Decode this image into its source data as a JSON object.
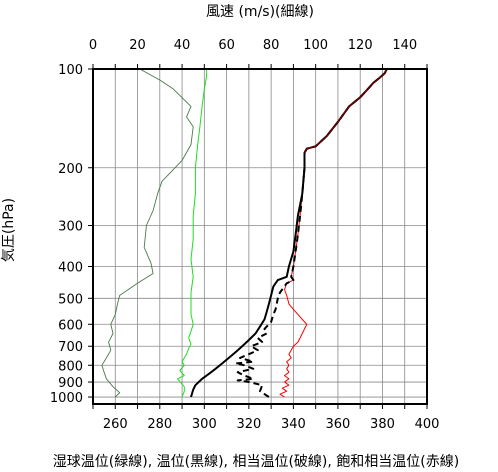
{
  "chart_data": {
    "type": "line",
    "title": "",
    "top_axis_label": "風速 (m/s)(細線)",
    "bottom_axis_label": "湿球温位(緑線), 温位(黒線), 相当温位(破線), 飽和相当温位(赤線)",
    "left_axis_label": "気圧(hPa)",
    "xlim_bottom": [
      250,
      400
    ],
    "xlim_top": [
      0,
      150
    ],
    "y_scale": "log",
    "ylim": [
      1050,
      100
    ],
    "bottom_ticks": [
      "260",
      "280",
      "300",
      "320",
      "340",
      "360",
      "380",
      "400"
    ],
    "top_ticks": [
      "0",
      "20",
      "40",
      "60",
      "80",
      "100",
      "120",
      "140"
    ],
    "y_ticks": [
      "100",
      "200",
      "300",
      "400",
      "500",
      "600",
      "700",
      "800",
      "900",
      "1000"
    ],
    "grid": true,
    "colors": {
      "wind": "#4a7a4a",
      "wet_bulb": "#22dd22",
      "theta": "#000000",
      "theta_e": "#000000",
      "theta_es": "#ff0000",
      "theta_es_upper": "#000000"
    },
    "series": [
      {
        "key": "wind",
        "style": "thin-solid",
        "axis": "top",
        "points": [
          [
            10,
            1000
          ],
          [
            12,
            970
          ],
          [
            9,
            930
          ],
          [
            6,
            880
          ],
          [
            5,
            840
          ],
          [
            4,
            800
          ],
          [
            6,
            760
          ],
          [
            8,
            720
          ],
          [
            7,
            680
          ],
          [
            9,
            640
          ],
          [
            8,
            600
          ],
          [
            10,
            560
          ],
          [
            11,
            520
          ],
          [
            12,
            490
          ],
          [
            20,
            450
          ],
          [
            27,
            420
          ],
          [
            26,
            390
          ],
          [
            23,
            350
          ],
          [
            24,
            300
          ],
          [
            27,
            270
          ],
          [
            29,
            240
          ],
          [
            31,
            220
          ],
          [
            40,
            190
          ],
          [
            44,
            170
          ],
          [
            45,
            150
          ],
          [
            42,
            140
          ],
          [
            44,
            130
          ],
          [
            36,
            115
          ],
          [
            30,
            108
          ],
          [
            21,
            100
          ]
        ]
      },
      {
        "key": "wet_bulb",
        "style": "solid",
        "axis": "bottom",
        "points": [
          [
            290,
            1000
          ],
          [
            291,
            960
          ],
          [
            291,
            930
          ],
          [
            288,
            880
          ],
          [
            291,
            860
          ],
          [
            289,
            830
          ],
          [
            291,
            800
          ],
          [
            290,
            780
          ],
          [
            291,
            760
          ],
          [
            292,
            740
          ],
          [
            293,
            710
          ],
          [
            294,
            690
          ],
          [
            293,
            660
          ],
          [
            294,
            630
          ],
          [
            295,
            600
          ],
          [
            294,
            560
          ],
          [
            294,
            520
          ],
          [
            294,
            480
          ],
          [
            295,
            430
          ],
          [
            294,
            380
          ],
          [
            295,
            330
          ],
          [
            295,
            280
          ],
          [
            296,
            240
          ],
          [
            296,
            200
          ],
          [
            297,
            170
          ],
          [
            298,
            150
          ],
          [
            299,
            130
          ],
          [
            300,
            115
          ],
          [
            301,
            105
          ],
          [
            301,
            100
          ]
        ]
      },
      {
        "key": "theta",
        "style": "solid",
        "axis": "bottom",
        "points": [
          [
            294,
            1000
          ],
          [
            295,
            950
          ],
          [
            296,
            920
          ],
          [
            299,
            880
          ],
          [
            302,
            850
          ],
          [
            305,
            820
          ],
          [
            308,
            790
          ],
          [
            311,
            760
          ],
          [
            314,
            730
          ],
          [
            317,
            700
          ],
          [
            320,
            670
          ],
          [
            323,
            640
          ],
          [
            325,
            610
          ],
          [
            327,
            580
          ],
          [
            328,
            550
          ],
          [
            329,
            520
          ],
          [
            330,
            490
          ],
          [
            331,
            460
          ],
          [
            333,
            440
          ],
          [
            337,
            430
          ],
          [
            338,
            400
          ],
          [
            340,
            360
          ],
          [
            341,
            320
          ],
          [
            342,
            280
          ],
          [
            344,
            240
          ],
          [
            345,
            200
          ],
          [
            345,
            180
          ],
          [
            346,
            175
          ],
          [
            350,
            172
          ],
          [
            355,
            160
          ],
          [
            360,
            145
          ],
          [
            365,
            130
          ],
          [
            370,
            122
          ],
          [
            373,
            116
          ],
          [
            376,
            110
          ],
          [
            379,
            106
          ],
          [
            381,
            103
          ],
          [
            382,
            100
          ]
        ]
      },
      {
        "key": "theta_e",
        "style": "dashed",
        "axis": "bottom",
        "points": [
          [
            329,
            1000
          ],
          [
            325,
            960
          ],
          [
            326,
            920
          ],
          [
            320,
            900
          ],
          [
            315,
            890
          ],
          [
            322,
            880
          ],
          [
            318,
            860
          ],
          [
            315,
            840
          ],
          [
            322,
            820
          ],
          [
            318,
            800
          ],
          [
            314,
            790
          ],
          [
            322,
            780
          ],
          [
            316,
            760
          ],
          [
            320,
            740
          ],
          [
            324,
            720
          ],
          [
            321,
            700
          ],
          [
            326,
            680
          ],
          [
            324,
            660
          ],
          [
            328,
            640
          ],
          [
            327,
            620
          ],
          [
            330,
            590
          ],
          [
            331,
            560
          ],
          [
            332,
            540
          ],
          [
            333,
            500
          ],
          [
            334,
            480
          ],
          [
            337,
            450
          ],
          [
            340,
            440
          ],
          [
            339,
            430
          ],
          [
            340,
            400
          ],
          [
            341,
            360
          ],
          [
            342,
            320
          ],
          [
            343,
            280
          ],
          [
            344,
            240
          ],
          [
            345,
            200
          ],
          [
            345,
            180
          ],
          [
            346,
            175
          ],
          [
            350,
            172
          ],
          [
            355,
            160
          ],
          [
            360,
            145
          ],
          [
            365,
            130
          ],
          [
            370,
            122
          ],
          [
            373,
            116
          ],
          [
            376,
            110
          ],
          [
            379,
            106
          ],
          [
            381,
            103
          ],
          [
            382,
            100
          ]
        ]
      },
      {
        "key": "theta_es",
        "style": "solid",
        "axis": "bottom",
        "points": [
          [
            336,
            1000
          ],
          [
            334,
            980
          ],
          [
            337,
            960
          ],
          [
            335,
            940
          ],
          [
            338,
            920
          ],
          [
            336,
            900
          ],
          [
            338,
            880
          ],
          [
            336,
            860
          ],
          [
            338,
            840
          ],
          [
            337,
            820
          ],
          [
            338,
            800
          ],
          [
            337,
            780
          ],
          [
            339,
            760
          ],
          [
            338,
            740
          ],
          [
            339,
            720
          ],
          [
            340,
            700
          ],
          [
            342,
            680
          ],
          [
            343,
            660
          ],
          [
            344,
            640
          ],
          [
            345,
            620
          ],
          [
            346,
            600
          ],
          [
            344,
            580
          ],
          [
            342,
            560
          ],
          [
            340,
            540
          ],
          [
            338,
            520
          ],
          [
            337,
            490
          ],
          [
            336,
            470
          ],
          [
            337,
            450
          ],
          [
            340,
            440
          ],
          [
            339,
            430
          ],
          [
            340,
            400
          ],
          [
            341,
            360
          ],
          [
            342,
            320
          ],
          [
            343,
            280
          ],
          [
            344,
            240
          ],
          [
            345,
            200
          ],
          [
            345,
            180
          ],
          [
            346,
            175
          ],
          [
            350,
            172
          ],
          [
            355,
            160
          ],
          [
            360,
            145
          ],
          [
            365,
            130
          ],
          [
            370,
            122
          ],
          [
            373,
            116
          ],
          [
            376,
            110
          ],
          [
            379,
            106
          ],
          [
            381,
            103
          ],
          [
            382,
            100
          ]
        ]
      }
    ]
  }
}
